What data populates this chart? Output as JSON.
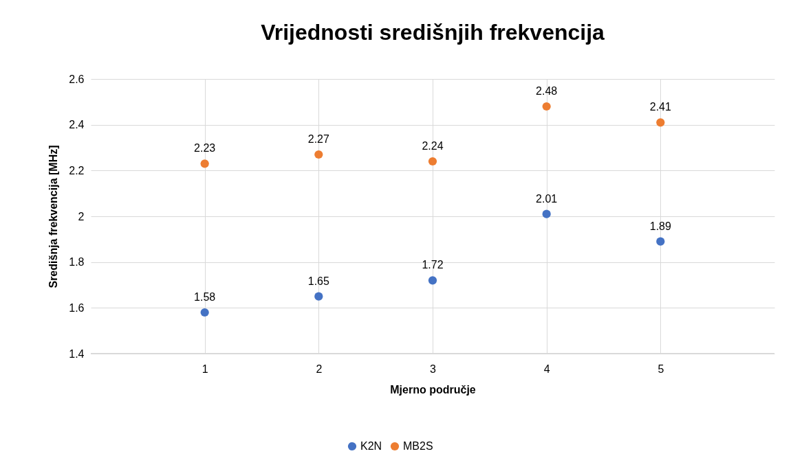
{
  "chart_data": {
    "type": "scatter",
    "title": "Vrijednosti središnjih frekvencija",
    "xlabel": "Mjerno područje",
    "ylabel": "Središnja frekvencija [MHz]",
    "x": [
      1,
      2,
      3,
      4,
      5
    ],
    "series": [
      {
        "name": "K2N",
        "color": "#4472c4",
        "values": [
          1.58,
          1.65,
          1.72,
          2.01,
          1.89
        ]
      },
      {
        "name": "MB2S",
        "color": "#ed7d31",
        "values": [
          2.23,
          2.27,
          2.24,
          2.48,
          2.41
        ]
      }
    ],
    "xlim": [
      0,
      6
    ],
    "xticks": [
      1,
      2,
      3,
      4,
      5
    ],
    "ylim": [
      1.4,
      2.6
    ],
    "yticks": [
      1.4,
      1.6,
      1.8,
      2,
      2.2,
      2.4,
      2.6
    ],
    "grid": true,
    "legend": "bottom",
    "data_labels": true,
    "marker": "circle"
  }
}
